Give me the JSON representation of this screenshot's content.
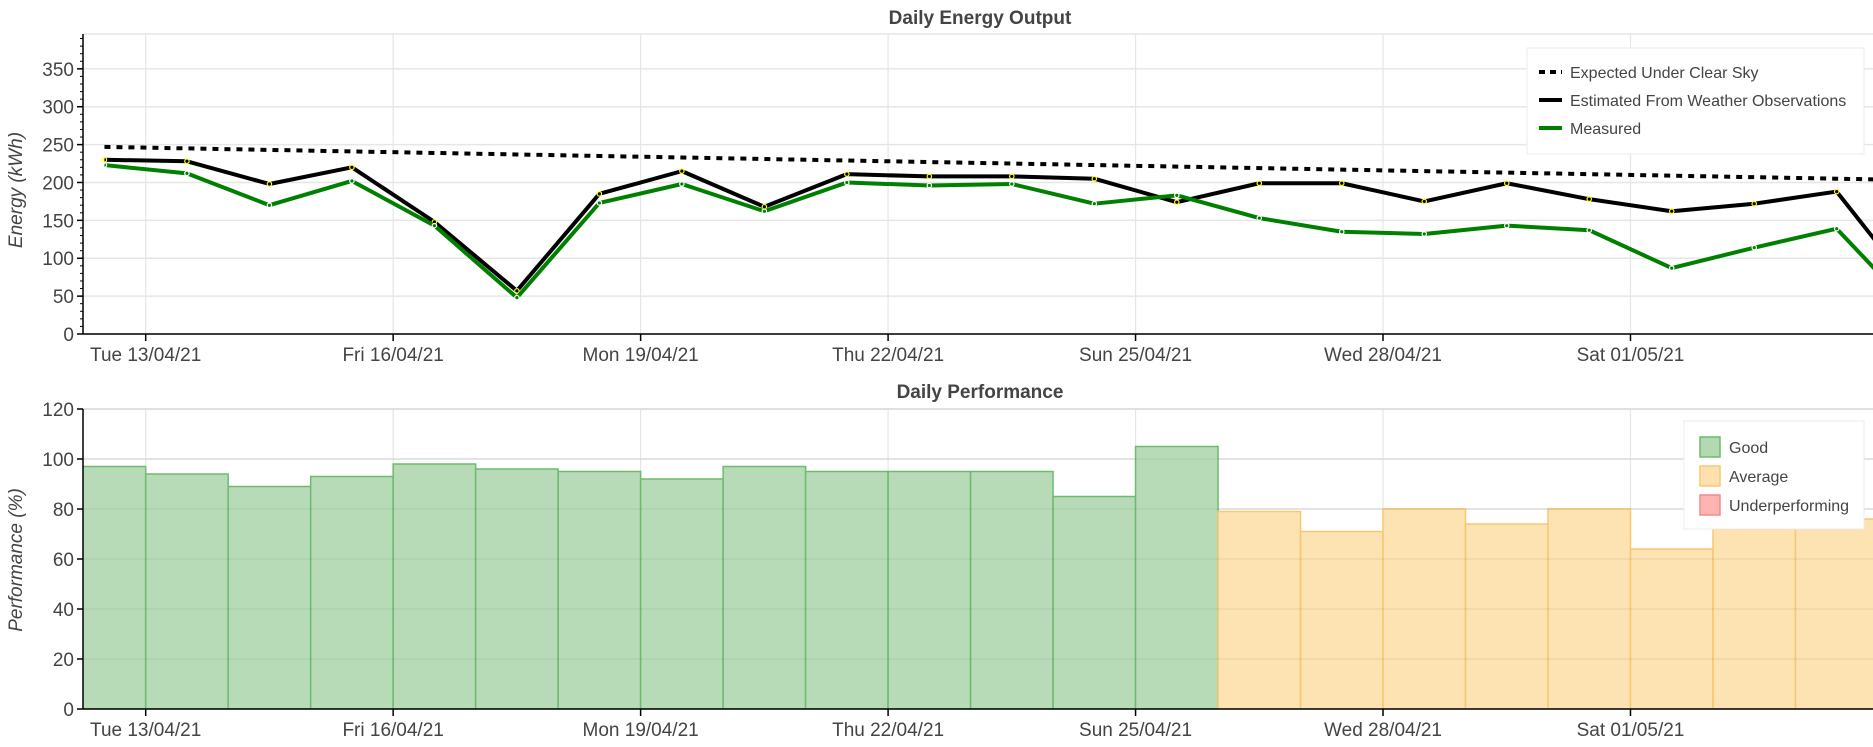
{
  "chart_data": [
    {
      "type": "line",
      "title": "Daily Energy Output",
      "xlabel": "",
      "ylabel": "Energy (kWh)",
      "ylim": [
        0,
        396
      ],
      "yticks": [
        "0",
        "50",
        "100",
        "150",
        "200",
        "250",
        "300",
        "350"
      ],
      "ytick_values": [
        0,
        50,
        100,
        150,
        200,
        250,
        300,
        350
      ],
      "xticks": [
        "Tue 13/04/21",
        "Fri 16/04/21",
        "Mon 19/04/21",
        "Thu 22/04/21",
        "Sun 25/04/21",
        "Wed 28/04/21",
        "Sat 01/05/21"
      ],
      "xtick_day_offsets": [
        0,
        3,
        6,
        9,
        12,
        15,
        18
      ],
      "xlim_days_from_13_04": [
        -0.76,
        20.94
      ],
      "x_day_offsets": [
        -0.5,
        0.5,
        1.5,
        2.5,
        3.5,
        4.5,
        5.5,
        6.5,
        7.5,
        8.5,
        9.5,
        10.5,
        11.5,
        12.5,
        13.5,
        14.5,
        15.5,
        16.5,
        17.5,
        18.5,
        19.5,
        20.5,
        21.5
      ],
      "grid": true,
      "legend_position": "top-right",
      "series": [
        {
          "name": "Expected Under Clear Sky",
          "color": "#000000",
          "style": "dashed",
          "values": [
            247,
            245,
            243,
            241,
            239,
            237,
            235,
            233,
            231,
            229,
            227,
            225,
            223,
            221,
            219,
            217,
            215,
            213,
            211,
            209,
            207,
            205,
            203
          ]
        },
        {
          "name": "Estimated From Weather Observations",
          "color": "#000000",
          "style": "solid",
          "values": [
            230,
            228,
            198,
            220,
            148,
            57,
            185,
            215,
            168,
            211,
            208,
            208,
            205,
            174,
            199,
            199,
            175,
            199,
            178,
            162,
            172,
            188,
            50
          ]
        },
        {
          "name": "Measured",
          "color": "#008000",
          "style": "solid",
          "values": [
            223,
            212,
            170,
            202,
            143,
            48,
            173,
            198,
            162,
            200,
            196,
            198,
            172,
            183,
            153,
            135,
            132,
            143,
            137,
            87,
            114,
            139,
            24
          ]
        }
      ]
    },
    {
      "type": "bar",
      "title": "Daily Performance",
      "xlabel": "",
      "ylabel": "Performance (%)",
      "ylim": [
        0,
        120
      ],
      "yticks": [
        "0",
        "20",
        "40",
        "60",
        "80",
        "100",
        "120"
      ],
      "ytick_values": [
        0,
        20,
        40,
        60,
        80,
        100,
        120
      ],
      "xticks": [
        "Tue 13/04/21",
        "Fri 16/04/21",
        "Mon 19/04/21",
        "Thu 22/04/21",
        "Sun 25/04/21",
        "Wed 28/04/21",
        "Sat 01/05/21"
      ],
      "xtick_day_offsets": [
        0,
        3,
        6,
        9,
        12,
        15,
        18
      ],
      "xlim_days_from_13_04": [
        -0.76,
        20.94
      ],
      "bar_start_day_offsets": [
        -1,
        0,
        1,
        2,
        3,
        4,
        5,
        6,
        7,
        8,
        9,
        10,
        11,
        12,
        13,
        14,
        15,
        16,
        17,
        18,
        19,
        20
      ],
      "values": [
        97,
        94,
        89,
        93,
        98,
        96,
        95,
        92,
        97,
        95,
        95,
        95,
        85,
        105,
        79,
        71,
        80,
        74,
        80,
        64,
        72,
        76
      ],
      "categories_class": [
        "Good",
        "Good",
        "Good",
        "Good",
        "Good",
        "Good",
        "Good",
        "Good",
        "Good",
        "Good",
        "Good",
        "Good",
        "Good",
        "Good",
        "Average",
        "Average",
        "Average",
        "Average",
        "Average",
        "Average",
        "Average",
        "Average"
      ],
      "grid": true,
      "legend_position": "top-right",
      "legend": [
        {
          "name": "Good",
          "fill": "#b3d9b3",
          "stroke": "#6dbb6d"
        },
        {
          "name": "Average",
          "fill": "#fde0ae",
          "stroke": "#f6c870"
        },
        {
          "name": "Underperforming",
          "fill": "#ffb3b3",
          "stroke": "#f08c8c"
        }
      ]
    }
  ]
}
